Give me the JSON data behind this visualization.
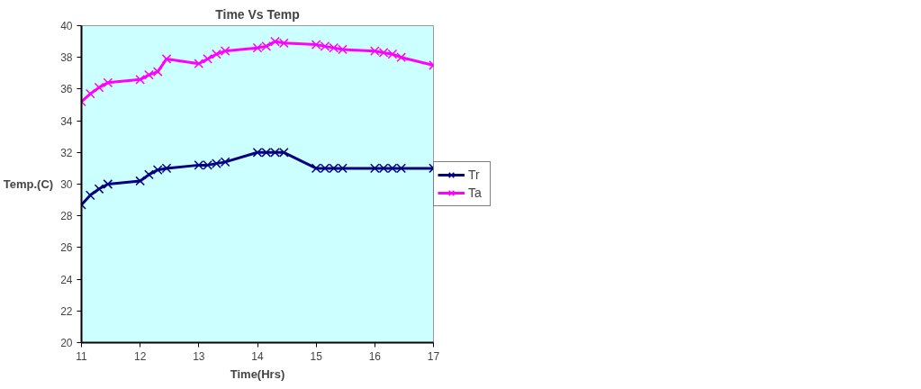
{
  "chart_data": {
    "type": "line",
    "title": "Time Vs Temp",
    "xlabel": "Time(Hrs)",
    "ylabel": "Temp.(C)",
    "x": [
      11,
      11.15,
      11.3,
      11.45,
      12,
      12.15,
      12.3,
      12.45,
      13,
      13.15,
      13.3,
      13.45,
      14,
      14.15,
      14.3,
      14.45,
      15,
      15.15,
      15.3,
      15.45,
      16,
      16.15,
      16.3,
      16.45,
      17
    ],
    "series": [
      {
        "name": "Tr",
        "color": "#000080",
        "marker": "cross",
        "values": [
          28.7,
          29.3,
          29.7,
          30.0,
          30.2,
          30.6,
          30.9,
          31.0,
          31.2,
          31.2,
          31.3,
          31.4,
          32,
          32,
          32,
          32,
          31,
          31,
          31,
          31,
          31,
          31,
          31,
          31,
          31
        ]
      },
      {
        "name": "Ta",
        "color": "#ff00ff",
        "marker": "cross",
        "values": [
          35.2,
          35.7,
          36.1,
          36.4,
          36.6,
          36.9,
          37.1,
          37.9,
          37.6,
          37.9,
          38.2,
          38.4,
          38.6,
          38.7,
          39.0,
          38.9,
          38.8,
          38.7,
          38.6,
          38.5,
          38.4,
          38.3,
          38.2,
          38.0,
          37.5
        ]
      }
    ],
    "xlim": [
      11,
      17
    ],
    "xticks": [
      11,
      12,
      13,
      14,
      15,
      16,
      17
    ],
    "ylim": [
      20,
      40
    ],
    "yticks": [
      20,
      22,
      24,
      26,
      28,
      30,
      32,
      34,
      36,
      38,
      40
    ],
    "grid": false,
    "legend": "right",
    "line_style": "solid"
  }
}
